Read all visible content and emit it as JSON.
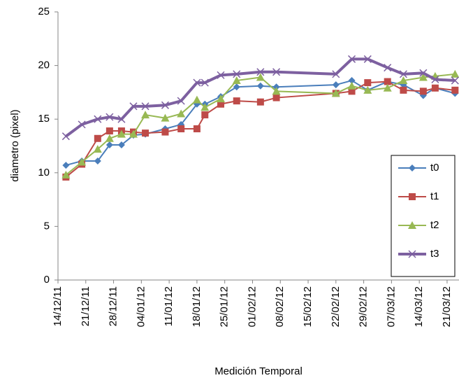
{
  "chart_data": {
    "type": "line",
    "xlabel": "Medición Temporal",
    "ylabel": "diametro (pixel)",
    "x": [
      "2011-12-16",
      "2011-12-20",
      "2011-12-24",
      "2011-12-27",
      "2011-12-30",
      "2012-01-02",
      "2012-01-05",
      "2012-01-10",
      "2012-01-14",
      "2012-01-18",
      "2012-01-20",
      "2012-01-24",
      "2012-01-28",
      "2012-02-03",
      "2012-02-07",
      "2012-02-22",
      "2012-02-26",
      "2012-03-01",
      "2012-03-06",
      "2012-03-10",
      "2012-03-15",
      "2012-03-18",
      "2012-03-23"
    ],
    "series": [
      {
        "name": "t0",
        "color": "#4a7ebb",
        "marker": "diamond",
        "values": [
          10.7,
          11.1,
          11.1,
          12.6,
          12.6,
          13.5,
          13.6,
          14.1,
          14.5,
          16.4,
          16.4,
          17.1,
          18.0,
          18.1,
          18.0,
          18.2,
          18.6,
          17.7,
          18.5,
          18.2,
          17.2,
          17.9,
          17.4
        ]
      },
      {
        "name": "t1",
        "color": "#be4b48",
        "marker": "square",
        "values": [
          9.6,
          10.8,
          13.2,
          13.9,
          13.9,
          13.8,
          13.7,
          13.8,
          14.1,
          14.1,
          15.4,
          16.4,
          16.7,
          16.6,
          17.0,
          17.4,
          17.6,
          18.4,
          18.5,
          17.7,
          17.6,
          17.9,
          17.7
        ]
      },
      {
        "name": "t2",
        "color": "#98b954",
        "marker": "triangle",
        "values": [
          9.8,
          11.0,
          12.2,
          13.2,
          13.6,
          13.6,
          15.4,
          15.1,
          15.5,
          16.8,
          16.1,
          16.9,
          18.6,
          18.9,
          17.6,
          17.4,
          18.1,
          17.7,
          17.9,
          18.6,
          18.9,
          19.0,
          19.2
        ]
      },
      {
        "name": "t3",
        "color": "#7d60a0",
        "marker": "x",
        "values": [
          13.4,
          14.5,
          15.0,
          15.2,
          15.0,
          16.2,
          16.2,
          16.3,
          16.7,
          18.4,
          18.4,
          19.1,
          19.2,
          19.4,
          19.4,
          19.2,
          20.6,
          20.6,
          19.8,
          19.2,
          19.3,
          18.7,
          18.6
        ]
      }
    ],
    "xlim": [
      "2011-12-14",
      "2012-03-24"
    ],
    "xticks": [
      {
        "value": "2011-12-14",
        "label": "14/12/11"
      },
      {
        "value": "2011-12-21",
        "label": "21/12/11"
      },
      {
        "value": "2011-12-28",
        "label": "28/12/11"
      },
      {
        "value": "2012-01-04",
        "label": "04/01/12"
      },
      {
        "value": "2012-01-11",
        "label": "11/01/12"
      },
      {
        "value": "2012-01-18",
        "label": "18/01/12"
      },
      {
        "value": "2012-01-25",
        "label": "25/01/12"
      },
      {
        "value": "2012-02-01",
        "label": "01/02/12"
      },
      {
        "value": "2012-02-08",
        "label": "08/02/12"
      },
      {
        "value": "2012-02-15",
        "label": "15/02/12"
      },
      {
        "value": "2012-02-22",
        "label": "22/02/12"
      },
      {
        "value": "2012-02-29",
        "label": "29/02/12"
      },
      {
        "value": "2012-03-07",
        "label": "07/03/12"
      },
      {
        "value": "2012-03-14",
        "label": "14/03/12"
      },
      {
        "value": "2012-03-21",
        "label": "21/03/12"
      }
    ],
    "ylim": [
      0,
      25
    ],
    "yticks": [
      0,
      5,
      10,
      15,
      20,
      25
    ],
    "legend": "right"
  }
}
